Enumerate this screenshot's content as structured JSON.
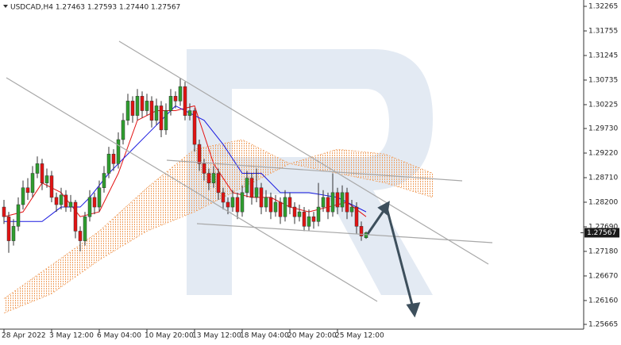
{
  "chart_data": {
    "type": "candlestick",
    "title": "USDCAD,H4  1.27463 1.27593 1.27440 1.27567",
    "categories": [
      "28 Apr 2022",
      null,
      null,
      null,
      null,
      null,
      null,
      null,
      null,
      null,
      "3 May 12:00",
      null,
      null,
      null,
      null,
      null,
      null,
      null,
      null,
      null,
      "6 May 04:00",
      null,
      null,
      null,
      null,
      null,
      null,
      null,
      null,
      null,
      "10 May 20:00",
      null,
      null,
      null,
      null,
      null,
      null,
      null,
      null,
      null,
      "13 May 12:00",
      null,
      null,
      null,
      null,
      null,
      null,
      null,
      null,
      null,
      "18 May 04:00",
      null,
      null,
      null,
      null,
      null,
      null,
      null,
      null,
      null,
      "20 May 20:00",
      null,
      null,
      null,
      null,
      null,
      null,
      null,
      null,
      null,
      "25 May 12:00",
      null,
      null,
      null,
      null,
      null,
      null
    ],
    "open": [
      1.281,
      1.279,
      1.274,
      1.277,
      1.2815,
      1.285,
      1.284,
      1.288,
      1.29,
      1.286,
      1.2875,
      1.283,
      1.2815,
      1.2835,
      1.281,
      1.282,
      1.276,
      1.274,
      1.279,
      1.283,
      1.281,
      1.285,
      1.288,
      1.292,
      1.29,
      1.295,
      1.299,
      1.303,
      1.3,
      1.304,
      1.301,
      1.303,
      1.299,
      1.302,
      1.297,
      1.301,
      1.304,
      1.303,
      1.306,
      1.3,
      1.301,
      1.294,
      1.29,
      1.288,
      1.286,
      1.288,
      1.284,
      1.282,
      1.281,
      1.283,
      1.28,
      1.284,
      1.287,
      1.283,
      1.285,
      1.281,
      1.283,
      1.28,
      1.282,
      1.279,
      1.283,
      1.281,
      1.279,
      1.28,
      1.277,
      1.279,
      1.278,
      1.281,
      1.283,
      1.28,
      1.284,
      1.281,
      1.284,
      1.28,
      1.281,
      1.277,
      1.27463
    ],
    "high": [
      1.2825,
      1.28,
      1.2785,
      1.283,
      1.2865,
      1.287,
      1.2895,
      1.2915,
      1.291,
      1.289,
      1.2885,
      1.284,
      1.285,
      1.2845,
      1.2835,
      1.2825,
      1.277,
      1.28,
      1.2845,
      1.284,
      1.2865,
      1.2895,
      1.2935,
      1.293,
      1.2965,
      1.3005,
      1.3045,
      1.304,
      1.3055,
      1.305,
      1.3045,
      1.304,
      1.3035,
      1.303,
      1.3025,
      1.3055,
      1.305,
      1.3078,
      1.307,
      1.3025,
      1.3015,
      1.295,
      1.291,
      1.289,
      1.2895,
      1.289,
      1.285,
      1.283,
      1.2845,
      1.284,
      1.2855,
      1.2885,
      1.288,
      1.289,
      1.286,
      1.2845,
      1.284,
      1.2835,
      1.283,
      1.2845,
      1.284,
      1.282,
      1.2815,
      1.281,
      1.2805,
      1.28,
      1.286,
      1.2845,
      1.284,
      1.288,
      1.285,
      1.2855,
      1.285,
      1.2825,
      1.282,
      1.278,
      1.27593
    ],
    "low": [
      1.2775,
      1.2715,
      1.273,
      1.276,
      1.2805,
      1.2825,
      1.283,
      1.287,
      1.2845,
      1.285,
      1.282,
      1.28,
      1.2805,
      1.28,
      1.28,
      1.2745,
      1.2718,
      1.273,
      1.278,
      1.2795,
      1.28,
      1.284,
      1.287,
      1.2885,
      1.289,
      1.294,
      1.298,
      1.2985,
      1.299,
      1.2995,
      1.3,
      1.2975,
      1.298,
      1.2955,
      1.296,
      1.3,
      1.3015,
      1.302,
      1.299,
      1.299,
      1.2925,
      1.2885,
      1.2865,
      1.2845,
      1.285,
      1.2825,
      1.2805,
      1.2795,
      1.28,
      1.2785,
      1.279,
      1.283,
      1.2815,
      1.282,
      1.2795,
      1.28,
      1.2785,
      1.279,
      1.2775,
      1.278,
      1.2795,
      1.2775,
      1.278,
      1.276,
      1.276,
      1.2765,
      1.277,
      1.28,
      1.2785,
      1.279,
      1.2795,
      1.28,
      1.2785,
      1.279,
      1.2755,
      1.274,
      1.2744
    ],
    "close": [
      1.279,
      1.274,
      1.277,
      1.2815,
      1.285,
      1.284,
      1.288,
      1.29,
      1.286,
      1.2875,
      1.283,
      1.2815,
      1.2835,
      1.281,
      1.282,
      1.276,
      1.274,
      1.279,
      1.283,
      1.281,
      1.285,
      1.288,
      1.292,
      1.29,
      1.295,
      1.299,
      1.303,
      1.3,
      1.304,
      1.301,
      1.303,
      1.299,
      1.302,
      1.297,
      1.301,
      1.304,
      1.303,
      1.306,
      1.3,
      1.301,
      1.294,
      1.29,
      1.288,
      1.286,
      1.288,
      1.284,
      1.282,
      1.281,
      1.283,
      1.28,
      1.284,
      1.287,
      1.283,
      1.285,
      1.281,
      1.283,
      1.28,
      1.282,
      1.279,
      1.283,
      1.281,
      1.279,
      1.28,
      1.277,
      1.279,
      1.278,
      1.281,
      1.283,
      1.28,
      1.284,
      1.281,
      1.284,
      1.28,
      1.281,
      1.277,
      1.275,
      1.27567
    ],
    "up_color": "#2e9e2e",
    "down_color": "#e31313",
    "lines": [
      {
        "color": "#e31313",
        "x": [
          0,
          4,
          8,
          12,
          16,
          20,
          24,
          28,
          32,
          36,
          40,
          44,
          48,
          52,
          56,
          60,
          64,
          68,
          72,
          76
        ],
        "values": [
          1.279,
          1.28,
          1.286,
          1.284,
          1.279,
          1.28,
          1.288,
          1.299,
          1.301,
          1.301,
          1.302,
          1.29,
          1.284,
          1.283,
          1.283,
          1.281,
          1.28,
          1.281,
          1.282,
          1.279
        ]
      },
      {
        "color": "#1a1ae0",
        "x": [
          0,
          8,
          12,
          16,
          18,
          22,
          26,
          30,
          36,
          42,
          46,
          50,
          54,
          58,
          64,
          70,
          76
        ],
        "values": [
          1.278,
          1.278,
          1.281,
          1.281,
          1.283,
          1.288,
          1.292,
          1.296,
          1.302,
          1.299,
          1.294,
          1.288,
          1.288,
          1.284,
          1.284,
          1.283,
          1.28
        ]
      }
    ],
    "cloud": {
      "color": "#f0a060",
      "x": [
        0,
        10,
        20,
        30,
        40,
        50,
        60,
        70,
        80,
        90
      ],
      "span_a": [
        1.262,
        1.269,
        1.276,
        1.285,
        1.293,
        1.295,
        1.29,
        1.288,
        1.286,
        1.283
      ],
      "span_b": [
        1.259,
        1.263,
        1.27,
        1.276,
        1.28,
        1.285,
        1.29,
        1.293,
        1.292,
        1.288
      ]
    },
    "last_price": 1.27567,
    "ylim": [
      1.25665,
      1.32265
    ],
    "yticks": [
      1.32265,
      1.31755,
      1.31245,
      1.30735,
      1.30225,
      {
        "value": 1.2973,
        "label": "1.29730"
      },
      {
        "value": 1.2922,
        "label": "1.29220"
      },
      {
        "value": 1.2871,
        "label": "1.28710"
      },
      {
        "value": 1.282,
        "label": "1.28200"
      },
      {
        "value": 1.2769,
        "label": "1.27690"
      },
      {
        "value": 1.2718,
        "label": "1.27180"
      },
      {
        "value": 1.2667,
        "label": "1.26670"
      },
      {
        "value": 1.2616,
        "label": "1.26160"
      },
      1.25665
    ]
  }
}
